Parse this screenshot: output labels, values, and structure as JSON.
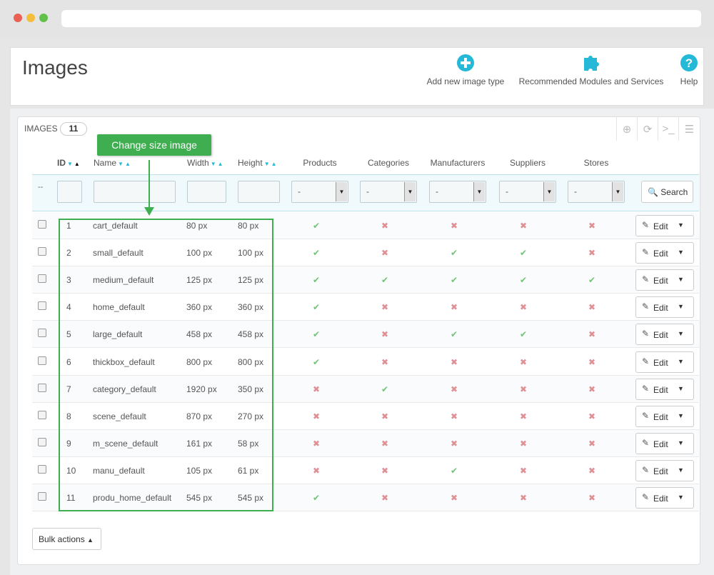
{
  "colors": {
    "accent": "#25b9d7",
    "annotation": "#3fae50",
    "ok": "#72c279",
    "no": "#e08f95"
  },
  "header": {
    "title": "Images",
    "toolbar": [
      {
        "label": "Add new image type",
        "icon": "add-circle-icon"
      },
      {
        "label": "Recommended Modules and Services",
        "icon": "puzzle-icon"
      },
      {
        "label": "Help",
        "icon": "help-circle-icon"
      }
    ]
  },
  "panel": {
    "title": "IMAGES",
    "count": "11"
  },
  "columns": {
    "id": "ID",
    "name": "Name",
    "width": "Width",
    "height": "Height",
    "products": "Products",
    "categories": "Categories",
    "manufacturers": "Manufacturers",
    "suppliers": "Suppliers",
    "stores": "Stores"
  },
  "filters": {
    "placeholder_dash": "--",
    "select_value": "-",
    "search_label": "Search"
  },
  "annotation": {
    "label": "Change size image"
  },
  "rows": [
    {
      "id": "1",
      "name": "cart_default",
      "width": "80 px",
      "height": "80 px",
      "flags": [
        true,
        false,
        false,
        false,
        false
      ]
    },
    {
      "id": "2",
      "name": "small_default",
      "width": "100 px",
      "height": "100 px",
      "flags": [
        true,
        false,
        true,
        true,
        false
      ]
    },
    {
      "id": "3",
      "name": "medium_default",
      "width": "125 px",
      "height": "125 px",
      "flags": [
        true,
        true,
        true,
        true,
        true
      ]
    },
    {
      "id": "4",
      "name": "home_default",
      "width": "360 px",
      "height": "360 px",
      "flags": [
        true,
        false,
        false,
        false,
        false
      ]
    },
    {
      "id": "5",
      "name": "large_default",
      "width": "458 px",
      "height": "458 px",
      "flags": [
        true,
        false,
        true,
        true,
        false
      ]
    },
    {
      "id": "6",
      "name": "thickbox_default",
      "width": "800 px",
      "height": "800 px",
      "flags": [
        true,
        false,
        false,
        false,
        false
      ]
    },
    {
      "id": "7",
      "name": "category_default",
      "width": "1920 px",
      "height": "350 px",
      "flags": [
        false,
        true,
        false,
        false,
        false
      ]
    },
    {
      "id": "8",
      "name": "scene_default",
      "width": "870 px",
      "height": "270 px",
      "flags": [
        false,
        false,
        false,
        false,
        false
      ]
    },
    {
      "id": "9",
      "name": "m_scene_default",
      "width": "161 px",
      "height": "58 px",
      "flags": [
        false,
        false,
        false,
        false,
        false
      ]
    },
    {
      "id": "10",
      "name": "manu_default",
      "width": "105 px",
      "height": "61 px",
      "flags": [
        false,
        false,
        true,
        false,
        false
      ]
    },
    {
      "id": "11",
      "name": "produ_home_default",
      "width": "545 px",
      "height": "545 px",
      "flags": [
        true,
        false,
        false,
        false,
        false
      ]
    }
  ],
  "row_actions": {
    "edit_label": "Edit"
  },
  "footer": {
    "bulk_label": "Bulk actions"
  }
}
